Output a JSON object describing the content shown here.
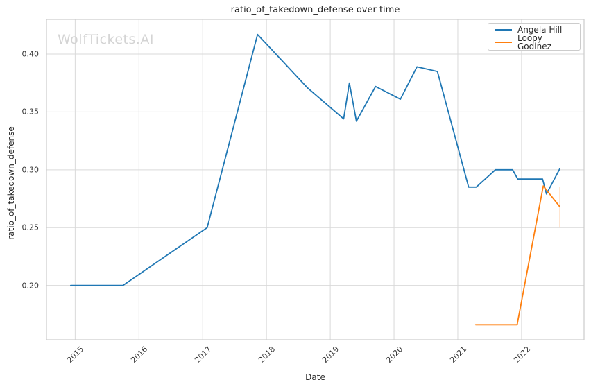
{
  "chart": {
    "title": "ratio_of_takedown_defense over time",
    "xlabel": "Date",
    "ylabel": "ratio_of_takedown_defense",
    "watermark": "WolfTickets.AI"
  },
  "chart_data": {
    "type": "line",
    "title": "ratio_of_takedown_defense over time",
    "xlabel": "Date",
    "ylabel": "ratio_of_takedown_defense",
    "x_unit": "decimal_year",
    "xlim": [
      2014.55,
      2022.98
    ],
    "ylim": [
      0.153,
      0.43
    ],
    "grid": true,
    "grid_color": "#d9d9d9",
    "spine_color": "#cccccc",
    "background": "#ffffff",
    "legend_position": "upper right",
    "x_ticks": [
      2015,
      2016,
      2017,
      2018,
      2019,
      2020,
      2021,
      2022
    ],
    "x_tick_labels": [
      "2015",
      "2016",
      "2017",
      "2018",
      "2019",
      "2020",
      "2021",
      "2022"
    ],
    "y_ticks": [
      0.2,
      0.25,
      0.3,
      0.35,
      0.4
    ],
    "y_tick_labels": [
      "0.20",
      "0.25",
      "0.30",
      "0.35",
      "0.40"
    ],
    "series": [
      {
        "name": "Angela Hill",
        "color": "#1f77b4",
        "points": [
          [
            2014.93,
            0.2
          ],
          [
            2015.75,
            0.2
          ],
          [
            2017.07,
            0.25
          ],
          [
            2017.86,
            0.417
          ],
          [
            2018.64,
            0.371
          ],
          [
            2019.21,
            0.344
          ],
          [
            2019.3,
            0.375
          ],
          [
            2019.41,
            0.342
          ],
          [
            2019.71,
            0.372
          ],
          [
            2020.1,
            0.361
          ],
          [
            2020.36,
            0.389
          ],
          [
            2020.68,
            0.385
          ],
          [
            2021.17,
            0.285
          ],
          [
            2021.29,
            0.285
          ],
          [
            2021.59,
            0.3
          ],
          [
            2021.86,
            0.3
          ],
          [
            2021.94,
            0.292
          ],
          [
            2022.33,
            0.292
          ],
          [
            2022.39,
            0.279
          ],
          [
            2022.6,
            0.301
          ]
        ]
      },
      {
        "name": "Loopy Godinez",
        "color": "#ff7f0e",
        "points": [
          [
            2021.28,
            0.166
          ],
          [
            2021.93,
            0.166
          ],
          [
            2022.34,
            0.286
          ],
          [
            2022.6,
            0.268
          ]
        ]
      }
    ],
    "annotations": [
      {
        "type": "vertical_segment",
        "x": 2022.6,
        "y_from": 0.25,
        "y_to": 0.285,
        "color": "#ff7f0e",
        "opacity": 0.35
      }
    ]
  }
}
